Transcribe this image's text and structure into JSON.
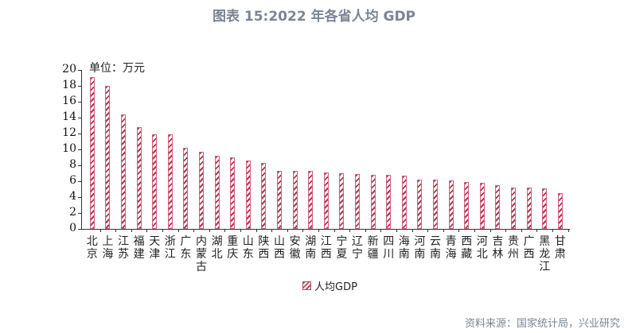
{
  "title": "图表 15:2022 年各省人均 GDP",
  "unit_label": "单位：万元",
  "legend": {
    "label": "人均GDP"
  },
  "source": "资料来源：国家统计局，兴业研究",
  "chart_data": {
    "type": "bar",
    "title": "图表 15:2022 年各省人均 GDP",
    "xlabel": "",
    "ylabel": "单位：万元",
    "ylim": [
      0,
      20
    ],
    "yticks": [
      0,
      2,
      4,
      6,
      8,
      10,
      12,
      14,
      16,
      18,
      20
    ],
    "grid": false,
    "legend_position": "bottom",
    "categories": [
      "北京",
      "上海",
      "江苏",
      "福建",
      "天津",
      "浙江",
      "广东",
      "内蒙古",
      "湖北",
      "重庆",
      "山东",
      "陕西",
      "山西",
      "安徽",
      "湖南",
      "江西",
      "宁夏",
      "辽宁",
      "新疆",
      "四川",
      "海南",
      "河南",
      "云南",
      "青海",
      "西藏",
      "河北",
      "吉林",
      "贵州",
      "广西",
      "黑龙江",
      "甘肃"
    ],
    "series": [
      {
        "name": "人均GDP",
        "color": "#c0475f",
        "pattern": "diagonal-hatch",
        "values": [
          19.1,
          18.0,
          14.4,
          12.8,
          11.9,
          11.9,
          10.2,
          9.7,
          9.2,
          9.0,
          8.6,
          8.3,
          7.3,
          7.3,
          7.3,
          7.1,
          7.0,
          6.9,
          6.8,
          6.8,
          6.7,
          6.2,
          6.2,
          6.1,
          5.9,
          5.8,
          5.5,
          5.2,
          5.2,
          5.1,
          4.5
        ]
      }
    ]
  }
}
